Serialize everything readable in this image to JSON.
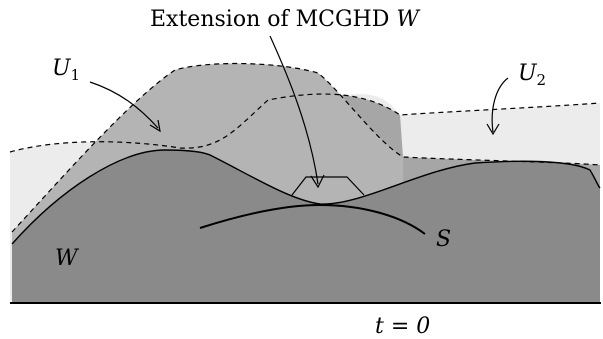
{
  "diagram": {
    "title": {
      "prefix": "Extension of MCGHD ",
      "var": "W"
    },
    "labels": {
      "u1": {
        "base": "U",
        "sub": "1"
      },
      "u2": {
        "base": "U",
        "sub": "2"
      },
      "w": "W",
      "s": "S",
      "time": "t = 0"
    },
    "colors": {
      "region_w": "#8a8a8a",
      "region_u1": "#b4b4b4",
      "region_u2": "#a6a6a6",
      "background_band": "#ececec",
      "ink": "#000000"
    }
  }
}
